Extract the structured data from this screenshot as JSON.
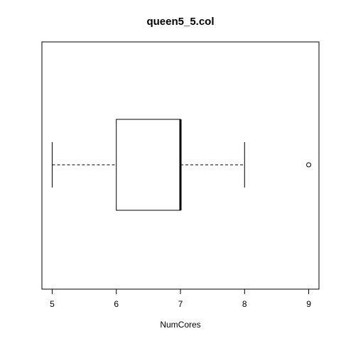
{
  "chart_data": {
    "type": "boxplot",
    "orientation": "horizontal",
    "title": "queen5_5.col",
    "xlabel": "NumCores",
    "ylabel": "",
    "xlim": [
      4.84,
      9.16
    ],
    "ticks": [
      5,
      6,
      7,
      8,
      9
    ],
    "tick_labels": [
      "5",
      "6",
      "7",
      "8",
      "9"
    ],
    "stats": {
      "whisker_low": 5,
      "q1": 6,
      "median": 7,
      "q3": 7,
      "whisker_high": 8
    },
    "outliers": [
      9
    ],
    "colors": {
      "box_fill": "#ffffff",
      "stroke": "#000000",
      "background": "#ffffff"
    }
  }
}
